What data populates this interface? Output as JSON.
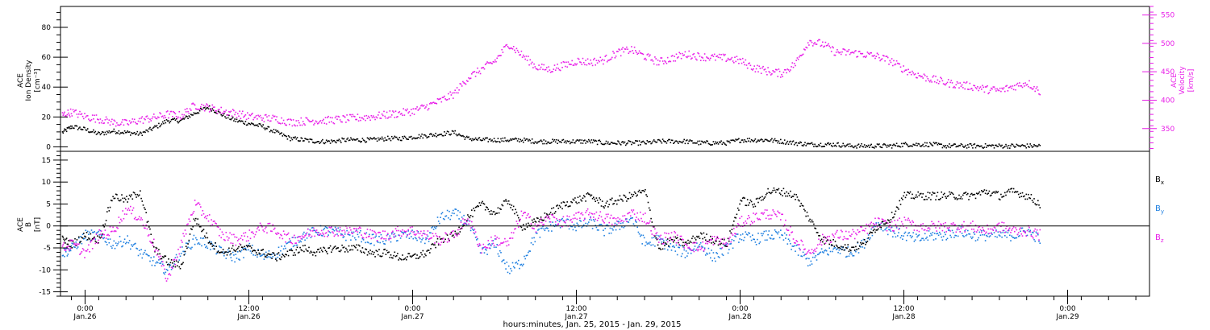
{
  "colors": {
    "axis": "#000000",
    "black_series": "#000000",
    "magenta_series": "#e81ee8",
    "blue_series": "#1e7fe0"
  },
  "x_axis": {
    "ticks": [
      {
        "time": "0:00",
        "date": "Jan.26",
        "hour": 24
      },
      {
        "time": "12:00",
        "date": "Jan.26",
        "hour": 36
      },
      {
        "time": "0:00",
        "date": "Jan.27",
        "hour": 48
      },
      {
        "time": "12:00",
        "date": "Jan.27",
        "hour": 60
      },
      {
        "time": "0:00",
        "date": "Jan.28",
        "hour": 72
      },
      {
        "time": "12:00",
        "date": "Jan.28",
        "hour": 84
      },
      {
        "time": "0:00",
        "date": "Jan.29",
        "hour": 96
      }
    ],
    "label": "hours:minutes, Jan. 25, 2015 - Jan. 29, 2015",
    "range_hours": [
      22.2,
      102
    ]
  },
  "chart_data": [
    {
      "type": "scatter",
      "panel": "top",
      "left_axis": {
        "label_lines": [
          "ACE",
          "Ion Density",
          "[cm⁻³]"
        ],
        "range": [
          -3,
          94
        ],
        "ticks": [
          0,
          20,
          40,
          60,
          80
        ],
        "tick_labels": [
          "0",
          "20",
          "40",
          "60",
          "80"
        ]
      },
      "right_axis": {
        "label_lines": [
          "ACE",
          "Velocity",
          "[km/s]"
        ],
        "range": [
          310,
          565
        ],
        "ticks": [
          350,
          400,
          450,
          500,
          550
        ],
        "tick_labels": [
          "350",
          "400",
          "450",
          "500",
          "550"
        ]
      },
      "series": [
        {
          "axis": "left",
          "color_key": "black_series",
          "x_hours": [
            22.3,
            23,
            24,
            25,
            26,
            27,
            28,
            29,
            30,
            31,
            32,
            33,
            34,
            35,
            36,
            37,
            38,
            39,
            40,
            41,
            42,
            43,
            44,
            45,
            46,
            47,
            48,
            49,
            50,
            51,
            52,
            53,
            54,
            55,
            56,
            57,
            58,
            59,
            60,
            61,
            62,
            63,
            64,
            65,
            66,
            67,
            68,
            69,
            70,
            71,
            72,
            73,
            74,
            75,
            76,
            77,
            78,
            79,
            80,
            81,
            82,
            83,
            84,
            85,
            86,
            87,
            88,
            89,
            90,
            91,
            92,
            93,
            94
          ],
          "y": [
            10,
            14,
            12,
            9,
            11,
            10,
            9,
            13,
            18,
            18,
            23,
            27,
            22,
            18,
            16,
            14,
            10,
            6,
            5,
            4,
            4,
            5,
            5,
            5,
            6,
            6,
            7,
            8,
            9,
            10,
            6,
            5,
            5,
            5,
            5,
            4,
            4,
            4,
            4,
            4,
            3,
            3,
            3,
            3,
            4,
            4,
            4,
            3,
            3,
            3,
            5,
            5,
            5,
            4,
            3,
            2,
            2,
            2,
            1,
            1,
            1,
            1,
            2,
            2,
            2,
            1,
            1,
            1,
            1,
            1,
            1,
            1,
            1
          ]
        },
        {
          "axis": "right",
          "color_key": "magenta_series",
          "x_hours": [
            22.3,
            23,
            24,
            25,
            26,
            27,
            28,
            29,
            30,
            31,
            32,
            33,
            34,
            35,
            36,
            37,
            38,
            39,
            40,
            41,
            42,
            43,
            44,
            45,
            46,
            47,
            48,
            49,
            50,
            51,
            52,
            53,
            54,
            55,
            56,
            57,
            58,
            59,
            60,
            61,
            62,
            63,
            64,
            65,
            66,
            67,
            68,
            69,
            70,
            71,
            72,
            73,
            74,
            75,
            76,
            77,
            78,
            79,
            80,
            81,
            82,
            83,
            84,
            85,
            86,
            87,
            88,
            89,
            90,
            91,
            92,
            93,
            94
          ],
          "y": [
            375,
            380,
            372,
            368,
            362,
            360,
            366,
            370,
            376,
            374,
            392,
            388,
            382,
            378,
            372,
            370,
            368,
            362,
            364,
            365,
            366,
            368,
            370,
            372,
            375,
            378,
            382,
            390,
            400,
            412,
            440,
            455,
            470,
            500,
            480,
            460,
            455,
            462,
            470,
            468,
            472,
            485,
            490,
            478,
            468,
            475,
            482,
            478,
            476,
            475,
            470,
            458,
            452,
            448,
            465,
            505,
            500,
            485,
            485,
            482,
            478,
            470,
            455,
            445,
            438,
            432,
            428,
            425,
            420,
            418,
            425,
            432,
            415
          ]
        }
      ]
    },
    {
      "type": "scatter",
      "panel": "bottom",
      "left_axis": {
        "label_lines": [
          "ACE",
          "B",
          "[nT]"
        ],
        "range": [
          -16,
          17
        ],
        "ticks": [
          -15,
          -10,
          -5,
          0,
          5,
          10,
          15
        ],
        "tick_labels": [
          "-15",
          "-10",
          "-5",
          "0",
          "5",
          "10",
          "15"
        ]
      },
      "zero_line": true,
      "series": [
        {
          "name": "Bx",
          "color_key": "black_series",
          "x_hours": [
            22.3,
            23,
            24,
            25,
            26,
            27,
            28,
            29,
            30,
            31,
            32,
            33,
            34,
            35,
            36,
            37,
            38,
            39,
            40,
            41,
            42,
            43,
            44,
            45,
            46,
            47,
            48,
            49,
            50,
            51,
            52,
            53,
            54,
            55,
            56,
            57,
            58,
            59,
            60,
            61,
            62,
            63,
            64,
            65,
            66,
            67,
            68,
            69,
            70,
            71,
            72,
            73,
            74,
            75,
            76,
            77,
            78,
            79,
            80,
            81,
            82,
            83,
            84,
            85,
            86,
            87,
            88,
            89,
            90,
            91,
            92,
            93,
            94
          ],
          "y": [
            -3,
            -4,
            -2,
            -3,
            7,
            6,
            8,
            -5,
            -8,
            -9,
            2,
            -3,
            -6,
            -5,
            -5,
            -6,
            -7,
            -6,
            -5,
            -6,
            -5,
            -5,
            -5,
            -6,
            -6,
            -7,
            -7,
            -6,
            -3,
            -2,
            2,
            5,
            3,
            6,
            0,
            1,
            3,
            5,
            6,
            7,
            5,
            6,
            7,
            8,
            -5,
            -3,
            -4,
            -2,
            -3,
            -4,
            6,
            5,
            8,
            8,
            7,
            2,
            -3,
            -4,
            -5,
            -4,
            0,
            2,
            7,
            7,
            7,
            7,
            7,
            7,
            8,
            7,
            8,
            7,
            5
          ]
        },
        {
          "name": "By",
          "color_key": "blue_series",
          "x_hours": [
            22.3,
            23,
            24,
            25,
            26,
            27,
            28,
            29,
            30,
            31,
            32,
            33,
            34,
            35,
            36,
            37,
            38,
            39,
            40,
            41,
            42,
            43,
            44,
            45,
            46,
            47,
            48,
            49,
            50,
            51,
            52,
            53,
            54,
            55,
            56,
            57,
            58,
            59,
            60,
            61,
            62,
            63,
            64,
            65,
            66,
            67,
            68,
            69,
            70,
            71,
            72,
            73,
            74,
            75,
            76,
            77,
            78,
            79,
            80,
            81,
            82,
            83,
            84,
            85,
            86,
            87,
            88,
            89,
            90,
            91,
            92,
            93,
            94
          ],
          "y": [
            -6,
            -5,
            -2,
            -2,
            -4,
            -3,
            -6,
            -8,
            -10,
            -6,
            -3,
            -4,
            -6,
            -7,
            -5,
            -7,
            -6,
            -4,
            -2,
            -1,
            -1,
            -2,
            -2,
            -3,
            -3,
            -2,
            -2,
            -3,
            2,
            3,
            1,
            -6,
            -4,
            -10,
            -8,
            -2,
            0,
            1,
            0,
            1,
            -1,
            0,
            2,
            -4,
            -3,
            -5,
            -6,
            -4,
            -7,
            -5,
            -2,
            -3,
            -2,
            -2,
            -5,
            -8,
            -6,
            -5,
            -6,
            -4,
            1,
            -1,
            -2,
            -3,
            -2,
            -2,
            -1,
            -2,
            -2,
            -2,
            -2,
            -1,
            -3
          ]
        },
        {
          "name": "Bz",
          "color_key": "magenta_series",
          "x_hours": [
            22.3,
            23,
            24,
            25,
            26,
            27,
            28,
            29,
            30,
            31,
            32,
            33,
            34,
            35,
            36,
            37,
            38,
            39,
            40,
            41,
            42,
            43,
            44,
            45,
            46,
            47,
            48,
            49,
            50,
            51,
            52,
            53,
            54,
            55,
            56,
            57,
            58,
            59,
            60,
            61,
            62,
            63,
            64,
            65,
            66,
            67,
            68,
            69,
            70,
            71,
            72,
            73,
            74,
            75,
            76,
            77,
            78,
            79,
            80,
            81,
            82,
            83,
            84,
            85,
            86,
            87,
            88,
            89,
            90,
            91,
            92,
            93,
            94
          ],
          "y": [
            -5,
            -4,
            -6,
            -2,
            -1,
            4,
            2,
            -4,
            -12,
            -4,
            5,
            2,
            -2,
            -3,
            -2,
            0,
            -1,
            -3,
            -2,
            -1,
            -1,
            -1,
            -1,
            -2,
            -2,
            -1,
            -1,
            -2,
            -3,
            -2,
            2,
            -5,
            -3,
            -4,
            3,
            0,
            2,
            1,
            2,
            3,
            2,
            1,
            3,
            2,
            -3,
            -2,
            -4,
            -5,
            -3,
            -4,
            1,
            2,
            3,
            2,
            -3,
            -6,
            -3,
            -2,
            -2,
            -1,
            1,
            0,
            1,
            0,
            0,
            0,
            0,
            0,
            -1,
            0,
            -1,
            -1,
            -2
          ]
        }
      ]
    }
  ],
  "legend": [
    {
      "label": "B",
      "sub": "x",
      "color_key": "black_series"
    },
    {
      "label": "B",
      "sub": "y",
      "color_key": "blue_series"
    },
    {
      "label": "B",
      "sub": "z",
      "color_key": "magenta_series"
    }
  ]
}
